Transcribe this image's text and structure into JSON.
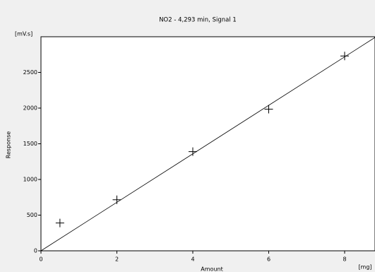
{
  "chart_data": {
    "type": "scatter",
    "title": "NO2 - 4,293 min, Signal 1",
    "xlabel": "Amount",
    "xunit": "[mg]",
    "ylabel": "Response",
    "yunit": "[mV.s]",
    "x": [
      0.5,
      2,
      4,
      6,
      8
    ],
    "values": [
      390,
      715,
      1390,
      1985,
      2730
    ],
    "color": "#000000",
    "fit": {
      "x": [
        0,
        8.8
      ],
      "values": [
        0,
        2990
      ],
      "color": "#000000"
    },
    "xlim": [
      0,
      8.8
    ],
    "xticks": [
      0,
      2,
      4,
      6,
      8
    ],
    "ylim": [
      0,
      3000
    ],
    "yticks": [
      0,
      500,
      1000,
      1500,
      2000,
      2500
    ]
  }
}
